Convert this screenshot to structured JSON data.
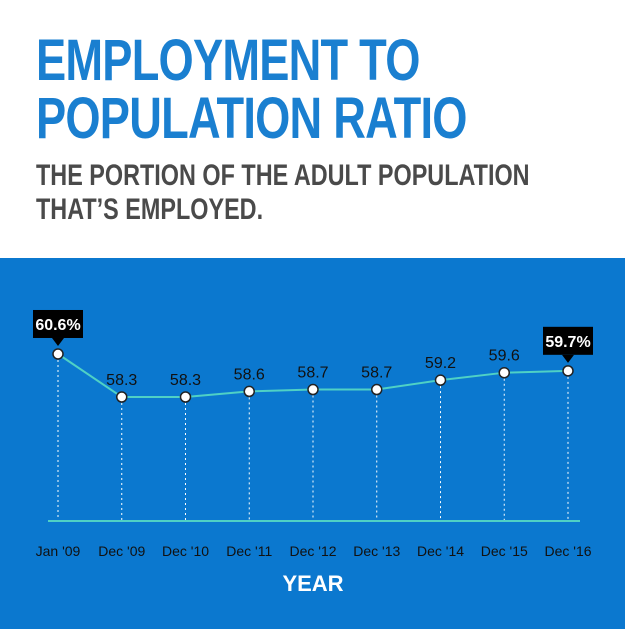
{
  "header": {
    "title_line1": "EMPLOYMENT TO",
    "title_line2": "POPULATION RATIO",
    "subtitle_line1": "THE PORTION OF THE ADULT POPULATION",
    "subtitle_line2": "THAT’S EMPLOYED."
  },
  "colors": {
    "title": "#1a7fd0",
    "subtitle": "#4a4a4a",
    "panel_background": "#0b78cf",
    "line": "#4fd1c5",
    "point_fill": "#ffffff",
    "callout_background": "#000000"
  },
  "chart_data": {
    "type": "line",
    "categories": [
      "Jan '09",
      "Dec '09",
      "Dec '10",
      "Dec '11",
      "Dec '12",
      "Dec '13",
      "Dec '14",
      "Dec '15",
      "Dec '16"
    ],
    "values": [
      60.6,
      58.3,
      58.3,
      58.6,
      58.7,
      58.7,
      59.2,
      59.6,
      59.7
    ],
    "data_labels": [
      "60.6%",
      "58.3",
      "58.3",
      "58.6",
      "58.7",
      "58.7",
      "59.2",
      "59.6",
      "59.7%"
    ],
    "highlighted": [
      0,
      8
    ],
    "xlabel": "YEAR",
    "ylabel": "",
    "grid": "vertical dotted guides at each category"
  }
}
